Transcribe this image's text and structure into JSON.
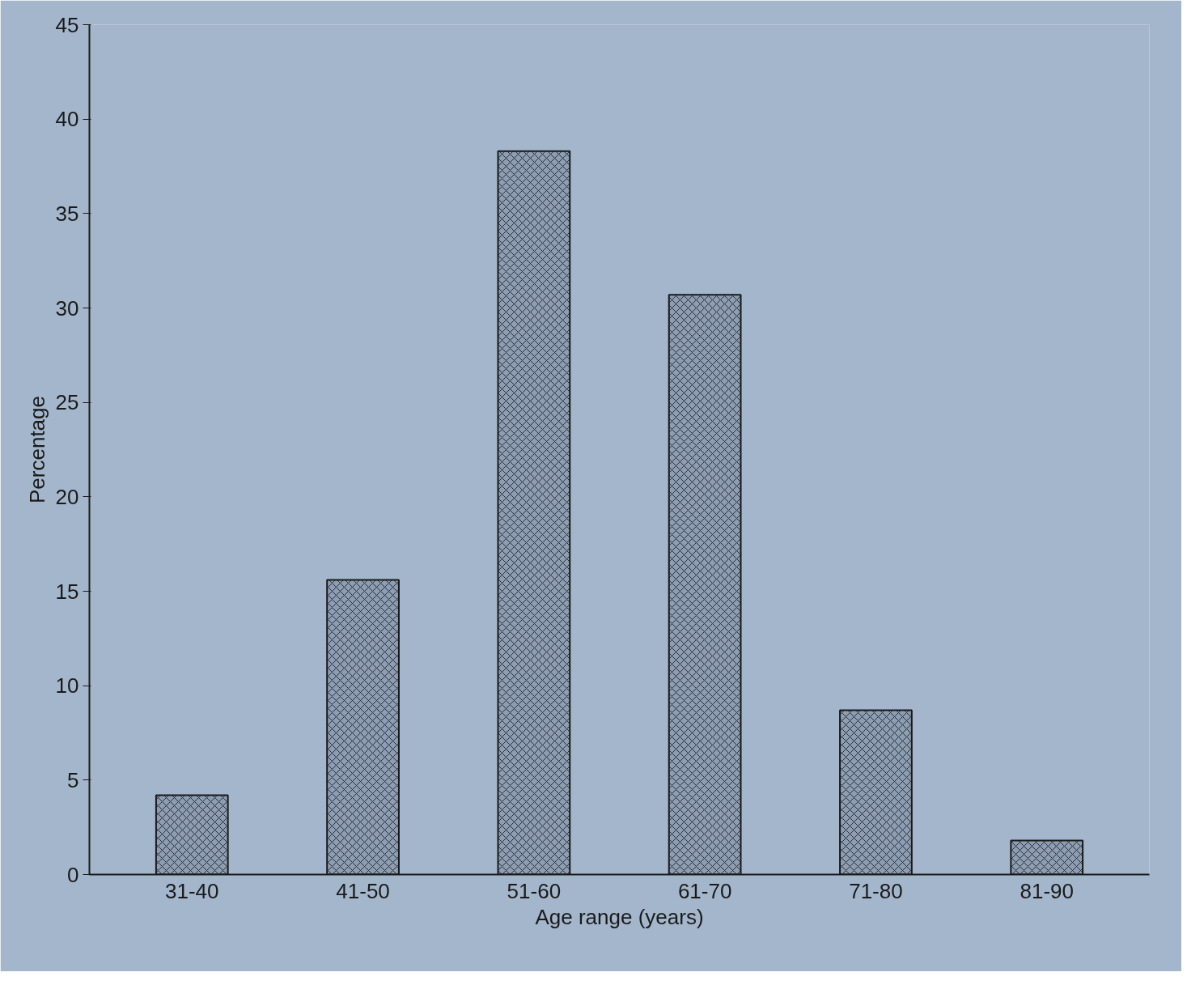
{
  "chart_data": {
    "type": "bar",
    "xlabel": "Age range (years)",
    "ylabel": "Percentage",
    "categories": [
      "31-40",
      "41-50",
      "51-60",
      "61-70",
      "71-80",
      "81-90"
    ],
    "values": [
      4.2,
      15.6,
      38.3,
      30.7,
      8.7,
      1.8
    ],
    "color": "#8d9db2",
    "ylim": [
      0,
      45
    ],
    "yticks": [
      0,
      5,
      10,
      15,
      20,
      25,
      30,
      35,
      40,
      45
    ],
    "grid": false
  }
}
